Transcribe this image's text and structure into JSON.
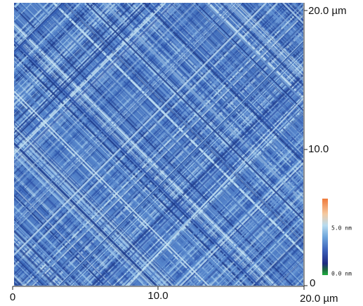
{
  "x_axis": {
    "labels": [
      "0",
      "10.0",
      "20.0 µm"
    ]
  },
  "y_axis": {
    "labels": [
      "0",
      "10.0",
      "20.0 µm"
    ]
  },
  "colorbar": {
    "labels": [
      "5.0 nm",
      "0.0 nm"
    ]
  }
}
